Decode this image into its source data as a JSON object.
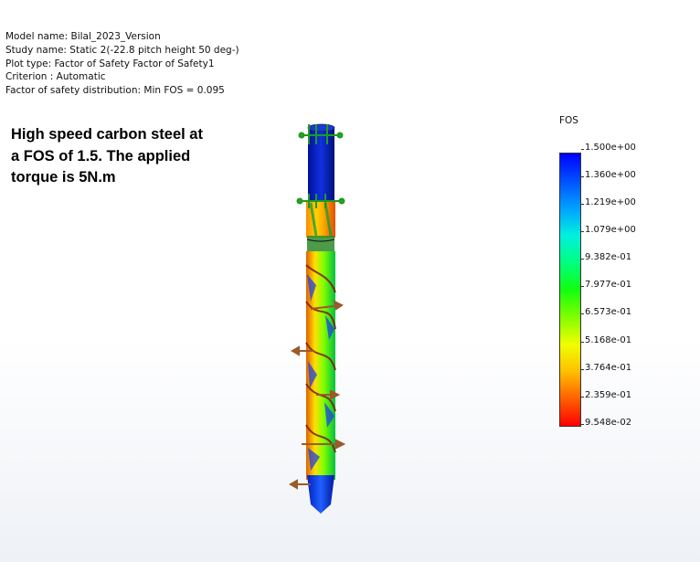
{
  "info": {
    "model_name": "Model name: Bilal_2023_Version",
    "study_name": "Study name: Static 2(-22.8 pitch height 50 deg-)",
    "plot_type": "Plot type: Factor of Safety Factor of Safety1",
    "criterion": "Criterion : Automatic",
    "distribution": "Factor of safety distribution: Min FOS = 0.095"
  },
  "note": {
    "line1": "High speed carbon steel at",
    "line2": "a FOS of 1.5. The applied",
    "line3": "torque is 5N.m"
  },
  "legend": {
    "title": "FOS",
    "labels": [
      "1.500e+00",
      "1.360e+00",
      "1.219e+00",
      "1.079e+00",
      "9.382e-01",
      "7.977e-01",
      "6.573e-01",
      "5.168e-01",
      "3.764e-01",
      "2.359e-01",
      "9.548e-02"
    ]
  },
  "colors": {
    "high": "#0000ff",
    "low": "#ff0000",
    "fixture": "#2aa52a",
    "load": "#a0522d"
  },
  "icons": {
    "fixture_arrows": "green-fixture-arrow-icon",
    "load_arrows": "brown-torque-arrow-icon"
  }
}
